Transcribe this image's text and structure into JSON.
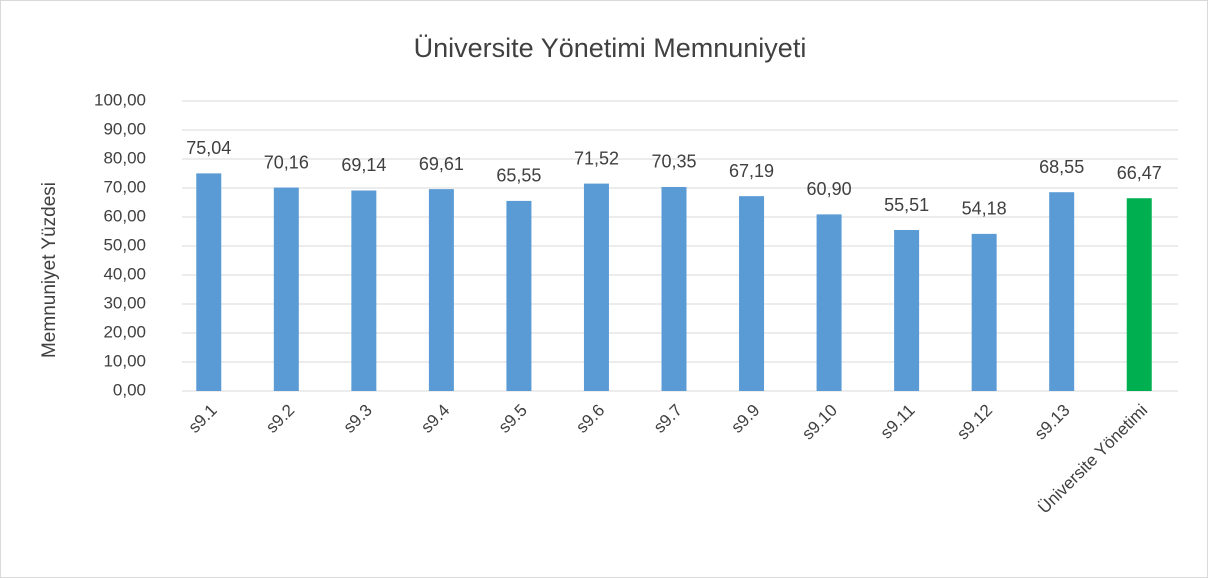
{
  "chart_data": {
    "type": "bar",
    "title": "Üniversite Yönetimi Memnuniyeti",
    "y_label": "Memnuniyet Yüzdesi",
    "categories": [
      "s9.1",
      "s9.2",
      "s9.3",
      "s9.4",
      "s9.5",
      "s9.6",
      "s9.7",
      "s9.9",
      "s9.10",
      "s9.11",
      "s9.12",
      "s9.13",
      "Üniversite Yönetimi"
    ],
    "values": [
      75.04,
      70.16,
      69.14,
      69.61,
      65.55,
      71.52,
      70.35,
      67.19,
      60.9,
      55.51,
      54.18,
      68.55,
      66.47
    ],
    "value_labels": [
      "75,04",
      "70,16",
      "69,14",
      "69,61",
      "65,55",
      "71,52",
      "70,35",
      "67,19",
      "60,90",
      "55,51",
      "54,18",
      "68,55",
      "66,47"
    ],
    "colors": [
      "#5b9bd5",
      "#5b9bd5",
      "#5b9bd5",
      "#5b9bd5",
      "#5b9bd5",
      "#5b9bd5",
      "#5b9bd5",
      "#5b9bd5",
      "#5b9bd5",
      "#5b9bd5",
      "#5b9bd5",
      "#5b9bd5",
      "#00b050"
    ],
    "ylim": [
      0,
      100
    ],
    "yticks": [
      {
        "value": 0,
        "label": "0,00"
      },
      {
        "value": 10,
        "label": "10,00"
      },
      {
        "value": 20,
        "label": "20,00"
      },
      {
        "value": 30,
        "label": "30,00"
      },
      {
        "value": 40,
        "label": "40,00"
      },
      {
        "value": 50,
        "label": "50,00"
      },
      {
        "value": 60,
        "label": "60,00"
      },
      {
        "value": 70,
        "label": "70,00"
      },
      {
        "value": 80,
        "label": "80,00"
      },
      {
        "value": 90,
        "label": "90,00"
      },
      {
        "value": 100,
        "label": "100,00"
      }
    ],
    "grid": true
  }
}
